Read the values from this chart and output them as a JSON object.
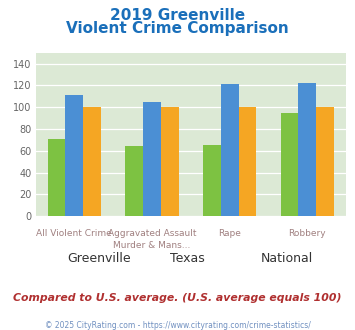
{
  "title_line1": "2019 Greenville",
  "title_line2": "Violent Crime Comparison",
  "top_labels": [
    "",
    "Aggravated Assault",
    "",
    ""
  ],
  "bottom_labels": [
    "All Violent Crime",
    "Murder & Mans...",
    "Rape",
    "Robbery"
  ],
  "series": {
    "Greenville": [
      71,
      64,
      65,
      95
    ],
    "Texas": [
      111,
      105,
      121,
      122
    ],
    "National": [
      100,
      100,
      100,
      100
    ]
  },
  "colors": {
    "Greenville": "#7dc242",
    "Texas": "#4b8fd4",
    "National": "#f5a623"
  },
  "ylim": [
    0,
    150
  ],
  "yticks": [
    0,
    20,
    40,
    60,
    80,
    100,
    120,
    140
  ],
  "plot_bg": "#dce9d5",
  "title_color": "#1a6fba",
  "footer_note": "Compared to U.S. average. (U.S. average equals 100)",
  "footer_note_color": "#b03030",
  "copyright": "© 2025 CityRating.com - https://www.cityrating.com/crime-statistics/",
  "copyright_color": "#7090c0",
  "label_color": "#a08080"
}
